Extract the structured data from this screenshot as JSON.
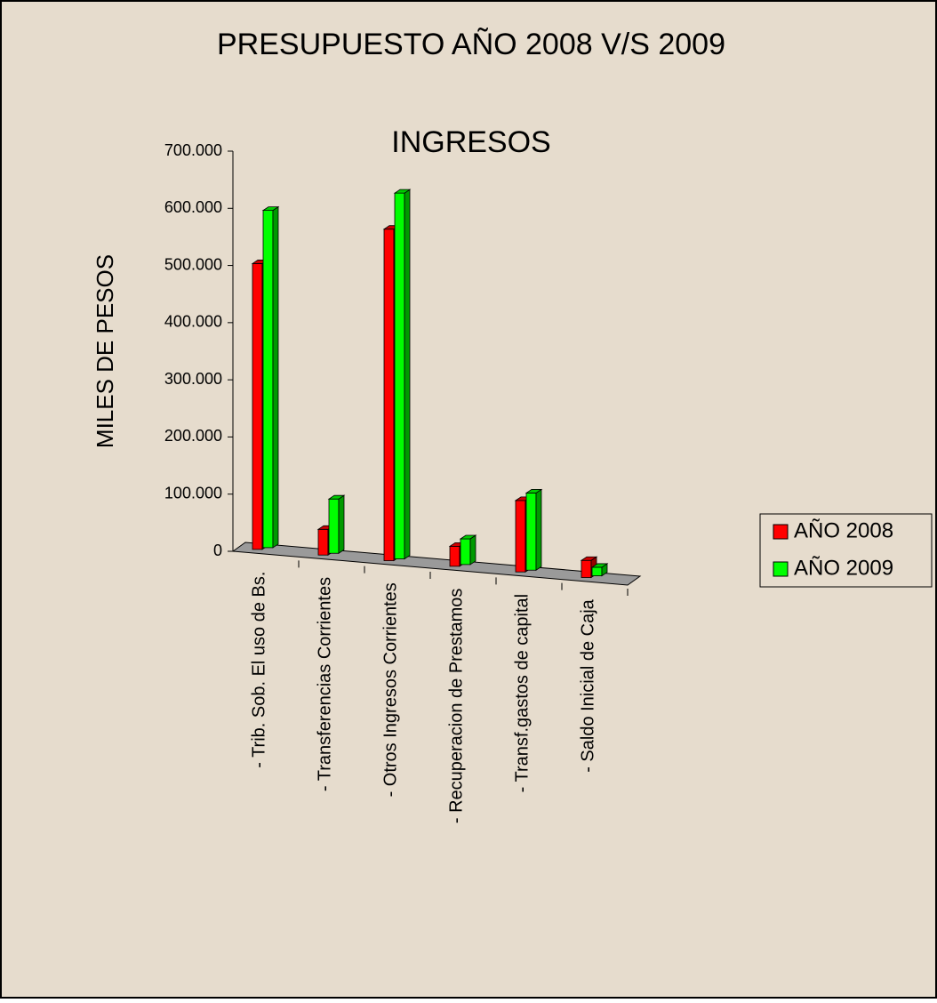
{
  "chart_data": {
    "type": "bar3d",
    "title": "PRESUPUESTO AÑO 2008 V/S 2009",
    "subtitle": "INGRESOS",
    "y_label": "MILES DE PESOS",
    "categories": [
      "- Trib. Sob. El uso de Bs.",
      "- Transferencias Corrientes",
      "- Otros Ingresos Corrientes",
      "- Recuperacion de Prestamos",
      "- Transf.gastos de capital",
      "- Saldo Inicial de Caja"
    ],
    "series": [
      {
        "name": "AÑO 2008",
        "color": "#ff0000",
        "values": [
          500000,
          45000,
          580000,
          35000,
          125000,
          30000
        ]
      },
      {
        "name": "AÑO 2009",
        "color": "#00ff00",
        "values": [
          590000,
          95000,
          640000,
          45000,
          135000,
          15000
        ]
      }
    ],
    "ylim": [
      0,
      700000
    ],
    "yticks": [
      0,
      {
        "value": 100000,
        "label": "100.000"
      },
      {
        "value": 200000,
        "label": "200.000"
      },
      {
        "value": 300000,
        "label": "300.000"
      },
      {
        "value": 400000,
        "label": "400.000"
      },
      {
        "value": 500000,
        "label": "500.000"
      },
      {
        "value": 600000,
        "label": "600.000"
      },
      {
        "value": 700000,
        "label": "700.000"
      }
    ],
    "legend": "right"
  }
}
